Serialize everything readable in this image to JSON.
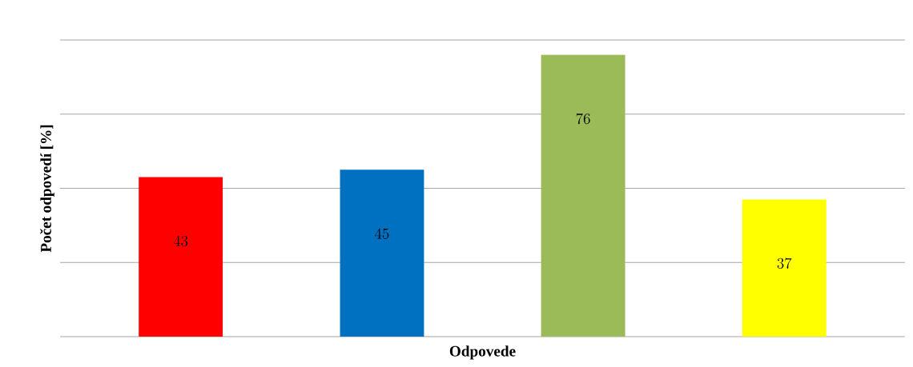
{
  "chart_data": {
    "type": "bar",
    "xlabel": "Odpovede",
    "ylabel": "Počet odpovedí [%]",
    "categories": [
      null,
      null,
      null,
      null
    ],
    "values": [
      43,
      45,
      76,
      37
    ],
    "colors": [
      "#ff0000",
      "#0070c0",
      "#9bbb59",
      "#ffff00"
    ],
    "ylim": [
      0,
      80
    ],
    "yticks": [
      {
        "value": 0,
        "label": null
      },
      {
        "value": 20,
        "label": null
      },
      {
        "value": 40,
        "label": null
      },
      {
        "value": 60,
        "label": null
      },
      {
        "value": 80,
        "label": null
      }
    ],
    "grid": "y",
    "data_labels": true
  }
}
